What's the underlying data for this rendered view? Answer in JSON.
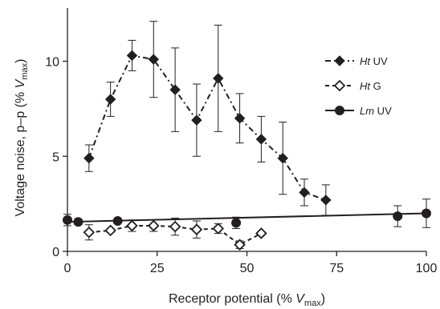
{
  "chart_data": {
    "type": "line",
    "xlabel": {
      "prefix": "Receptor potential (% ",
      "var": "V",
      "sub": "max",
      "suffix": ")"
    },
    "ylabel": {
      "prefix": "Voltage noise, p–p (% ",
      "var": "V",
      "sub": "max",
      "suffix": ")"
    },
    "xlim": [
      0,
      100
    ],
    "ylim": [
      0,
      12.8
    ],
    "xticks": [
      0,
      25,
      50,
      75,
      100
    ],
    "yticks": [
      0,
      5,
      10
    ],
    "grid": false,
    "legend_position": "top-right",
    "series": [
      {
        "name": "Ht UV",
        "name_italic": "Ht",
        "name_rest": " UV",
        "marker": "diamond-filled",
        "line": "dash-dot",
        "color": "#231f20",
        "x": [
          6,
          12,
          18,
          24,
          30,
          36,
          42,
          48,
          54,
          60,
          66,
          72
        ],
        "y": [
          4.9,
          8.0,
          10.3,
          10.1,
          8.5,
          6.9,
          9.1,
          7.0,
          5.9,
          4.9,
          3.1,
          2.7
        ],
        "err": [
          0.7,
          0.9,
          0.8,
          2.0,
          2.2,
          1.9,
          2.8,
          1.3,
          1.2,
          1.9,
          0.7,
          0.8
        ]
      },
      {
        "name": "Ht G",
        "name_italic": "Ht",
        "name_rest": " G",
        "marker": "diamond-open",
        "line": "dashed",
        "color": "#231f20",
        "x": [
          6,
          12,
          18,
          24,
          30,
          36,
          42,
          48,
          54
        ],
        "y": [
          1.0,
          1.1,
          1.35,
          1.35,
          1.3,
          1.15,
          1.2,
          0.35,
          0.95
        ],
        "err": [
          0.4,
          0.1,
          0.3,
          0.3,
          0.45,
          0.45,
          0.25,
          0.2,
          0.05
        ]
      },
      {
        "name": "Lm UV",
        "name_italic": "Lm",
        "name_rest": " UV",
        "marker": "circle-filled",
        "line": "solid",
        "color": "#231f20",
        "x": [
          0,
          3,
          14,
          47,
          92,
          100
        ],
        "y": [
          1.65,
          1.55,
          1.6,
          1.5,
          1.85,
          2.0
        ],
        "err": [
          0.3,
          0.15,
          0.1,
          0.3,
          0.55,
          0.75
        ],
        "fit": {
          "x": [
            0,
            100
          ],
          "y": [
            1.55,
            2.0
          ]
        }
      }
    ]
  }
}
